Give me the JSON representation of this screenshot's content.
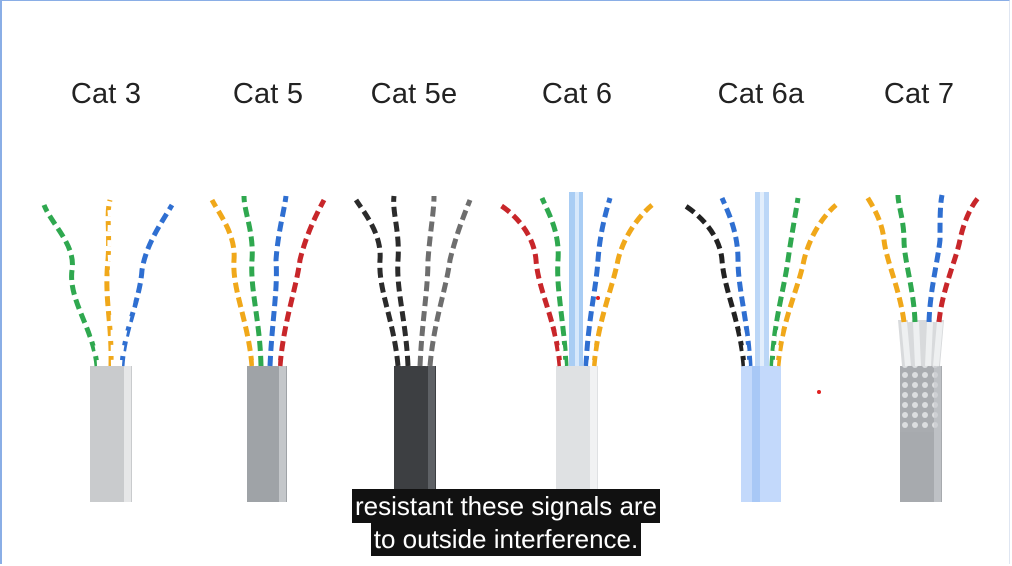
{
  "cables": [
    {
      "label": "Cat 3",
      "jacket_color": "#c9cbcd",
      "wire_colors": [
        "#2fa84f",
        "#f0a81a",
        "#2f6fd1"
      ]
    },
    {
      "label": "Cat 5",
      "jacket_color": "#9fa3a7",
      "wire_colors": [
        "#f0a81a",
        "#2fa84f",
        "#2f6fd1",
        "#c8262a"
      ]
    },
    {
      "label": "Cat 5e",
      "jacket_color": "#3d3f42",
      "wire_colors": [
        "#2b2b2b",
        "#2b2b2b",
        "#6e6e6e",
        "#6e6e6e"
      ]
    },
    {
      "label": "Cat 6",
      "jacket_color": "#dfe1e3",
      "wire_colors": [
        "#c8262a",
        "#2fa84f",
        "#2f6fd1",
        "#f0a81a"
      ]
    },
    {
      "label": "Cat 6a",
      "jacket_color": "#c3d9fb",
      "wire_colors": [
        "#222222",
        "#2f6fd1",
        "#2fa84f",
        "#f0a81a"
      ]
    },
    {
      "label": "Cat 7",
      "jacket_color": "#a7aaae",
      "wire_colors": [
        "#f0a81a",
        "#2fa84f",
        "#2f6fd1",
        "#c8262a"
      ]
    }
  ],
  "subtitle": {
    "line1": "resistant these signals are",
    "line2": "to outside interference."
  }
}
